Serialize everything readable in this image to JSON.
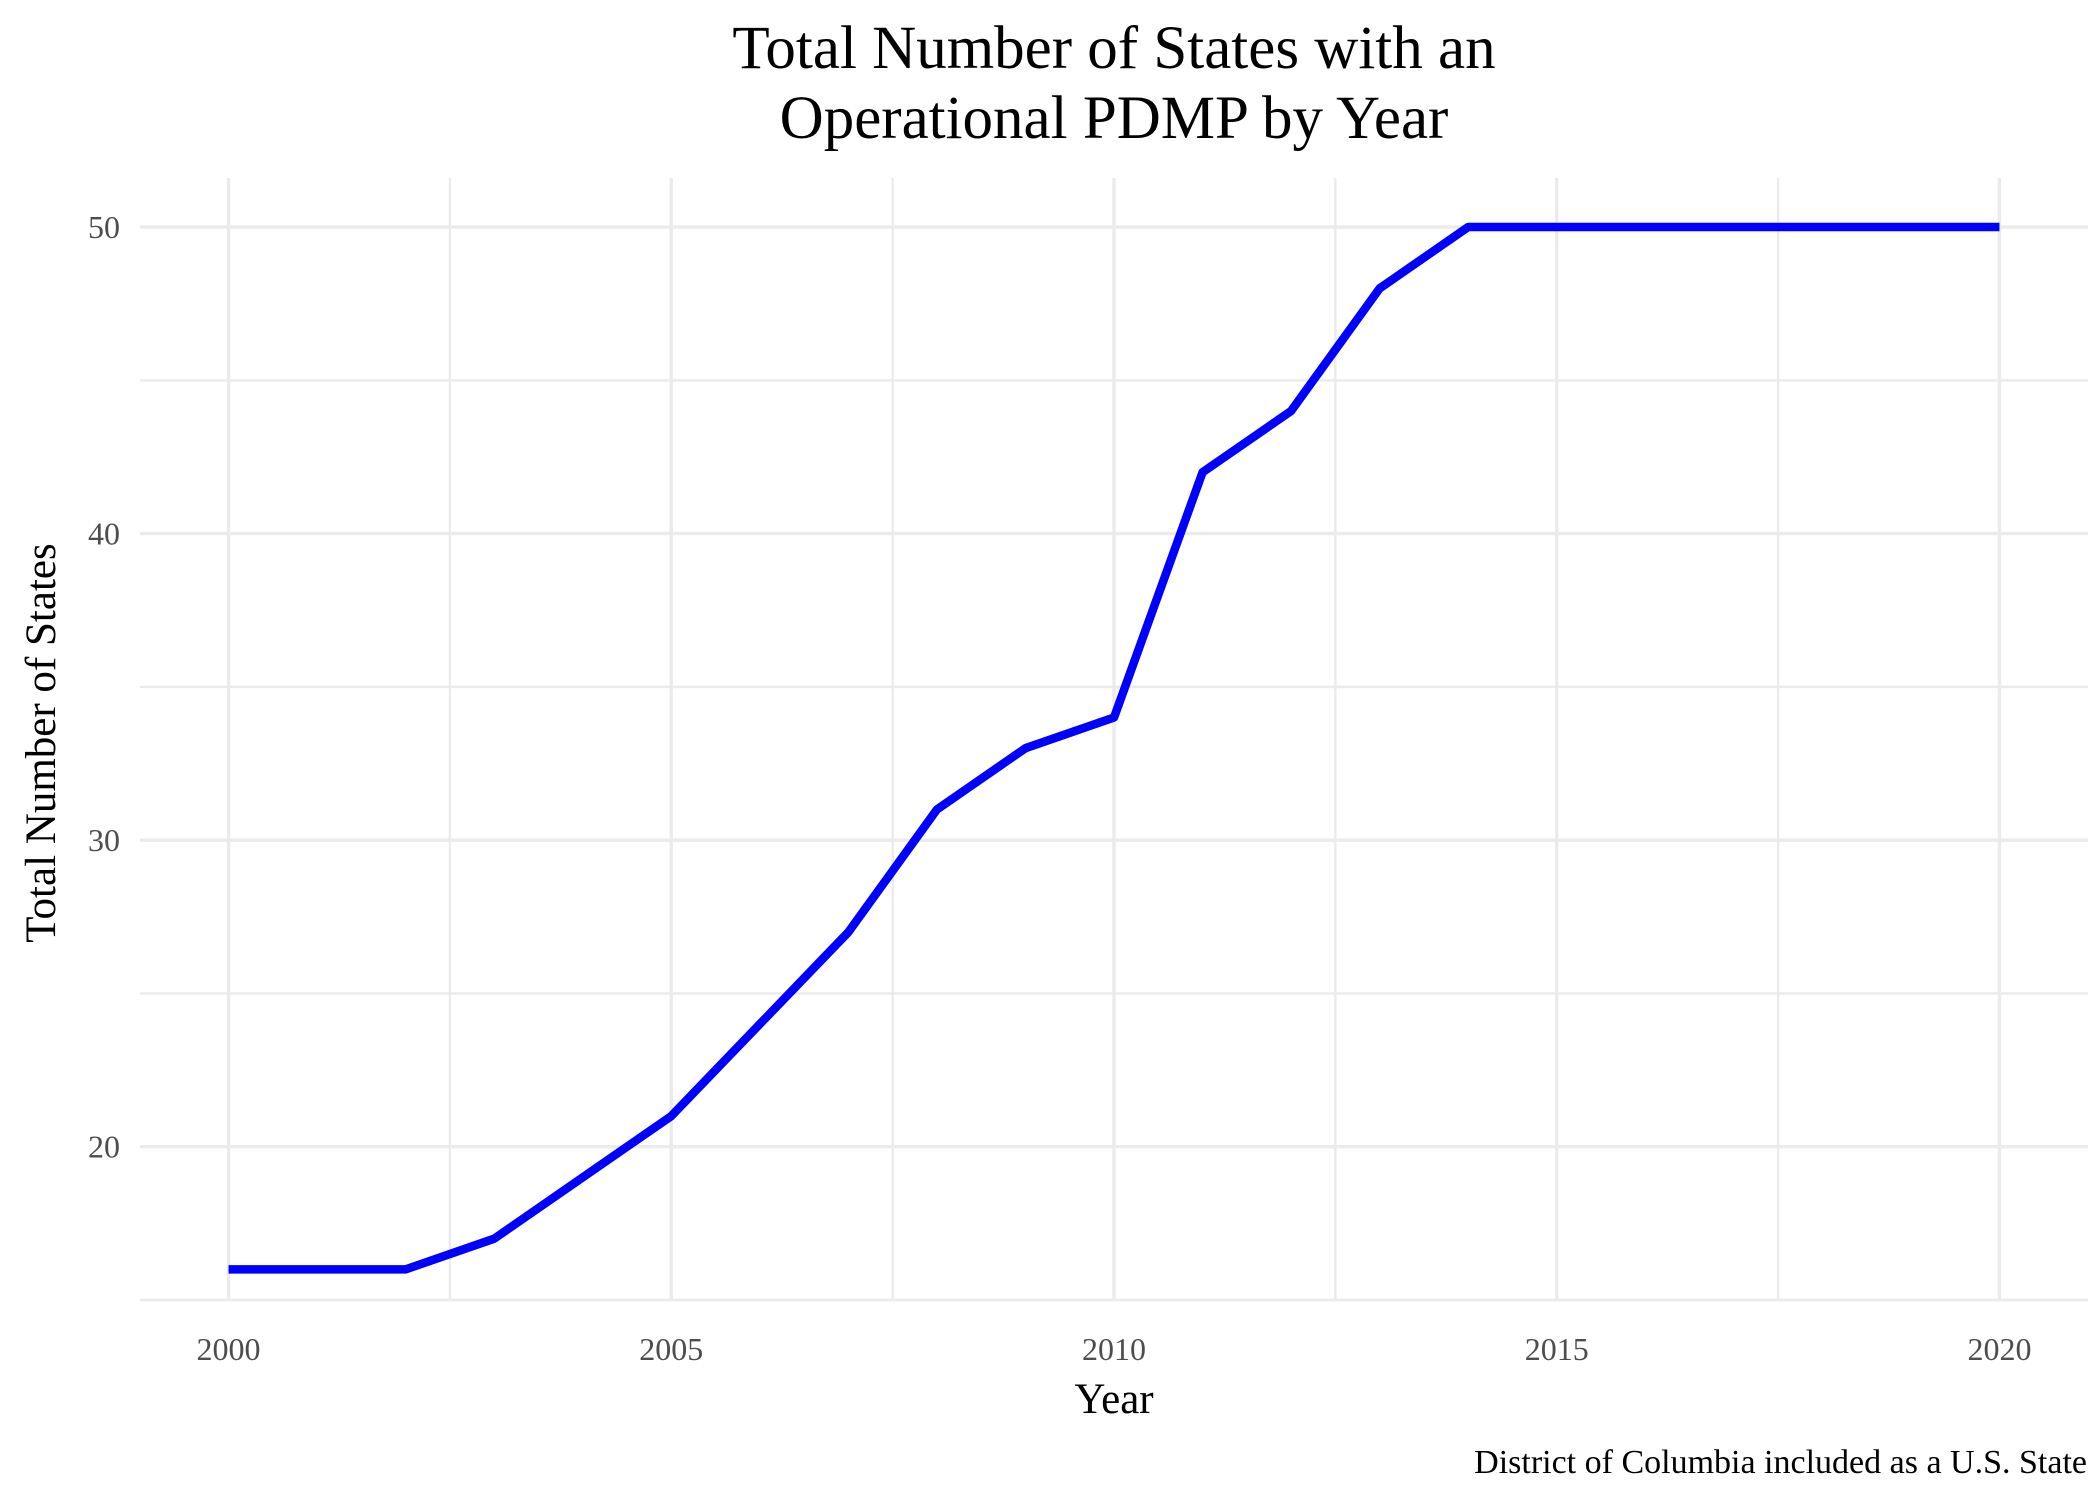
{
  "chart_data": {
    "type": "line",
    "title": [
      "Total Number of States with an",
      "Operational PDMP by Year"
    ],
    "xlabel": "Year",
    "ylabel": "Total Number of States",
    "caption": "District of Columbia included as a U.S. State",
    "x": [
      2000,
      2001,
      2002,
      2003,
      2004,
      2005,
      2006,
      2007,
      2008,
      2009,
      2010,
      2011,
      2012,
      2013,
      2014,
      2015,
      2016,
      2017,
      2018,
      2019,
      2020
    ],
    "series": [
      {
        "values": [
          16,
          16,
          16,
          17,
          19,
          21,
          24,
          27,
          31,
          33,
          34,
          42,
          44,
          48,
          50,
          50,
          50,
          50,
          50,
          50,
          50
        ],
        "color": "#0000ff"
      }
    ],
    "xlim": [
      1999,
      2021
    ],
    "ylim": [
      15,
      51.6
    ],
    "x_ticks": [
      2000,
      2005,
      2010,
      2015,
      2020
    ],
    "x_tick_labels": [
      "2000",
      "2005",
      "2010",
      "2015",
      "2020"
    ],
    "y_ticks": [
      20,
      30,
      40,
      50
    ],
    "y_tick_labels": [
      "20",
      "30",
      "40",
      "50"
    ],
    "y_minor_ticks": [
      15,
      25,
      35,
      45
    ],
    "grid": true,
    "legend": "none"
  }
}
